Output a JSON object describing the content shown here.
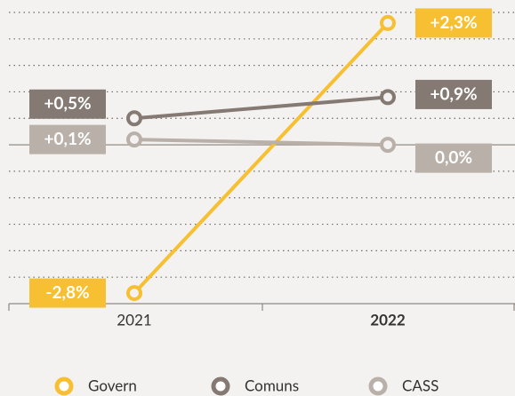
{
  "chart_data": {
    "type": "line",
    "categories": [
      "2021",
      "2022"
    ],
    "series": [
      {
        "name": "Govern",
        "color": "#f7bf32",
        "values": [
          -2.8,
          2.3
        ],
        "value_labels": [
          "-2,8%",
          "+2,3%"
        ]
      },
      {
        "name": "Comuns",
        "color": "#857a73",
        "values": [
          0.5,
          0.9
        ],
        "value_labels": [
          "+0,5%",
          "+0,9%"
        ]
      },
      {
        "name": "CASS",
        "color": "#b9b0a9",
        "values": [
          0.1,
          0.0
        ],
        "value_labels": [
          "+0,1%",
          "0,0%"
        ]
      }
    ],
    "ylim": [
      -3,
      2.5
    ],
    "yticks": [
      -3,
      -2.5,
      -2,
      -1.5,
      -1,
      -0.5,
      0,
      0.5,
      1,
      1.5,
      2,
      2.5
    ],
    "grid": true
  }
}
